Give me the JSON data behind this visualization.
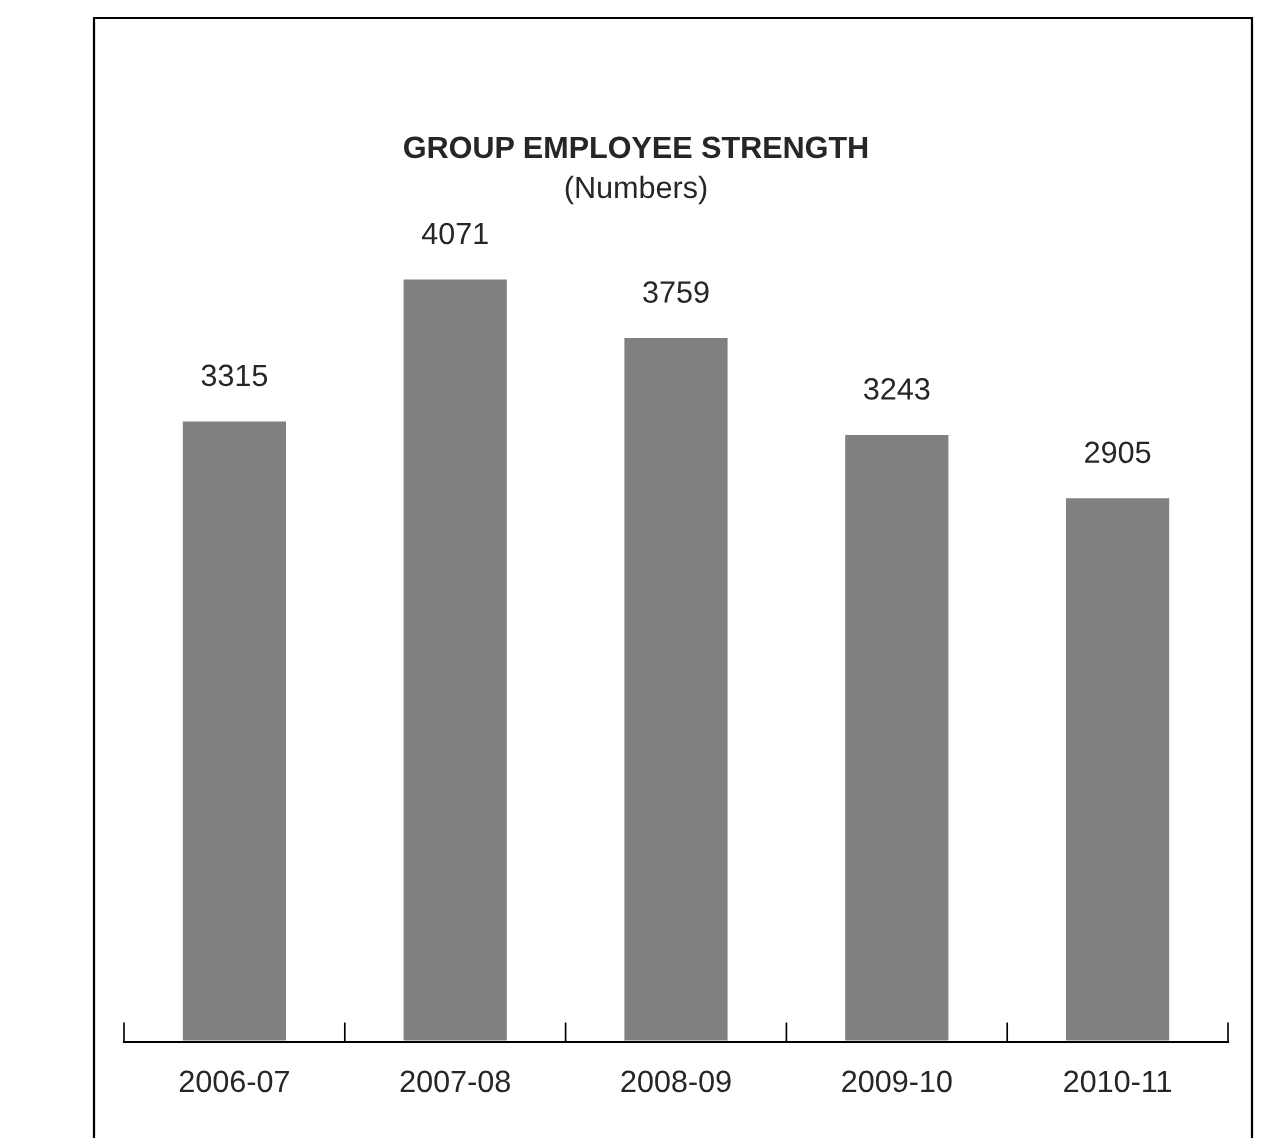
{
  "chart_data": {
    "type": "bar",
    "title": "GROUP EMPLOYEE STRENGTH",
    "subtitle": "(Numbers)",
    "categories": [
      "2006-07",
      "2007-08",
      "2008-09",
      "2009-10",
      "2010-11"
    ],
    "values": [
      3315,
      4071,
      3759,
      3243,
      2905
    ],
    "color": "#808083",
    "data_labels": true,
    "tick_labels": "x",
    "grid": false,
    "legend": false
  }
}
